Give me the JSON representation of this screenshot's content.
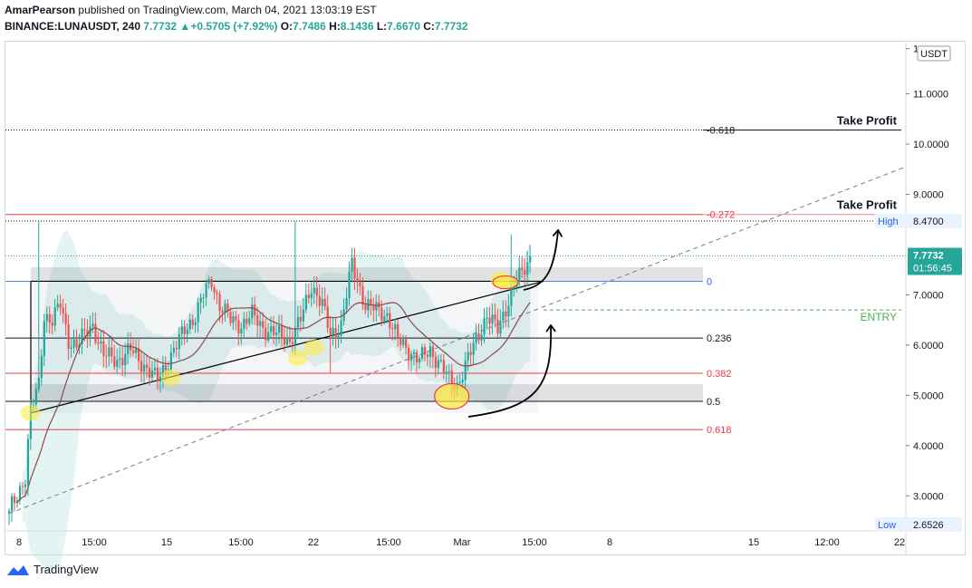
{
  "header": {
    "author": "AmarPearson",
    "published_text": "published on TradingView.com, March 04, 2021 13:03:19 EST",
    "symbol": "BINANCE:LUNAUSDT, 240",
    "last": "7.7732",
    "change": "+0.5705 (+7.92%)",
    "o_label": "O:",
    "o": "7.7486",
    "h_label": "H:",
    "h": "8.1436",
    "l_label": "L:",
    "l": "7.6670",
    "c_label": "C:",
    "c": "7.7732"
  },
  "footer": {
    "brand": "TradingView"
  },
  "colors": {
    "up": "#26a69a",
    "down": "#ef5350",
    "fib_red": "#f23645",
    "fib_black": "#131722",
    "entry": "#4caf50",
    "trend": "#000000",
    "band": "#b2dfdb"
  },
  "chart_data": {
    "type": "candlestick",
    "currency": "USDT",
    "ylim": [
      2.5,
      11.75
    ],
    "y_ticks": [
      "1",
      "11.0000",
      "10.0000",
      "9.0000",
      "8.0000",
      "7.0000",
      "6.0000",
      "5.0000",
      "4.0000",
      "3.0000"
    ],
    "x_ticks": [
      "8",
      "15:00",
      "15",
      "15:00",
      "22",
      "15:00",
      "Mar",
      "15:00",
      "8",
      "15",
      "12:00",
      "22"
    ],
    "price_labels": {
      "high_label": "High",
      "high": "8.4700",
      "low_label": "Low",
      "low": "2.6526",
      "current": "7.7732",
      "countdown": "01:56:45"
    },
    "fib_levels": [
      {
        "label": "-0.618",
        "price": 10.28,
        "color": "black"
      },
      {
        "label": "-0.272",
        "price": 8.6,
        "color": "red"
      },
      {
        "label": "0",
        "price": 7.27,
        "color": "blue"
      },
      {
        "label": "0.236",
        "price": 6.14,
        "color": "black"
      },
      {
        "label": "0.382",
        "price": 5.44,
        "color": "red"
      },
      {
        "label": "0.5",
        "price": 4.88,
        "color": "black"
      },
      {
        "label": "0.618",
        "price": 4.32,
        "color": "red"
      }
    ],
    "annotations": [
      {
        "text": "Take Profit",
        "price": 10.28
      },
      {
        "text": "Take Profit",
        "price": 8.6
      },
      {
        "text": "ENTRY",
        "price": 6.7
      }
    ],
    "keypoints": [
      [
        0,
        2.7
      ],
      [
        3,
        3.0
      ],
      [
        6,
        3.4
      ],
      [
        8,
        4.7
      ],
      [
        11,
        5.2
      ],
      [
        13,
        6.6
      ],
      [
        16,
        6.5
      ],
      [
        19,
        6.8
      ],
      [
        22,
        6.1
      ],
      [
        25,
        6.0
      ],
      [
        28,
        6.2
      ],
      [
        31,
        6.4
      ],
      [
        35,
        5.8
      ],
      [
        40,
        5.7
      ],
      [
        45,
        5.9
      ],
      [
        50,
        5.6
      ],
      [
        55,
        5.3
      ],
      [
        58,
        5.6
      ],
      [
        62,
        6.0
      ],
      [
        65,
        6.3
      ],
      [
        69,
        6.6
      ],
      [
        72,
        7.0
      ],
      [
        75,
        7.3
      ],
      [
        78,
        6.8
      ],
      [
        82,
        6.5
      ],
      [
        86,
        6.4
      ],
      [
        90,
        6.6
      ],
      [
        95,
        6.3
      ],
      [
        100,
        6.2
      ],
      [
        104,
        6.1
      ],
      [
        108,
        6.5
      ],
      [
        112,
        7.2
      ],
      [
        116,
        6.8
      ],
      [
        119,
        6.2
      ],
      [
        123,
        6.4
      ],
      [
        127,
        7.6
      ],
      [
        132,
        6.8
      ],
      [
        136,
        6.7
      ],
      [
        140,
        6.6
      ],
      [
        144,
        6.1
      ],
      [
        148,
        5.9
      ],
      [
        152,
        5.7
      ],
      [
        156,
        5.9
      ],
      [
        160,
        5.6
      ],
      [
        163,
        5.3
      ],
      [
        166,
        5.2
      ],
      [
        169,
        5.6
      ],
      [
        173,
        6.1
      ],
      [
        177,
        6.6
      ],
      [
        181,
        6.3
      ],
      [
        185,
        6.9
      ],
      [
        188,
        7.3
      ],
      [
        190,
        7.4
      ],
      [
        193,
        7.77
      ]
    ],
    "spikes": [
      {
        "i": 11,
        "high": 8.47
      },
      {
        "i": 106,
        "high": 8.47
      },
      {
        "i": 186,
        "high": 8.2
      }
    ]
  }
}
